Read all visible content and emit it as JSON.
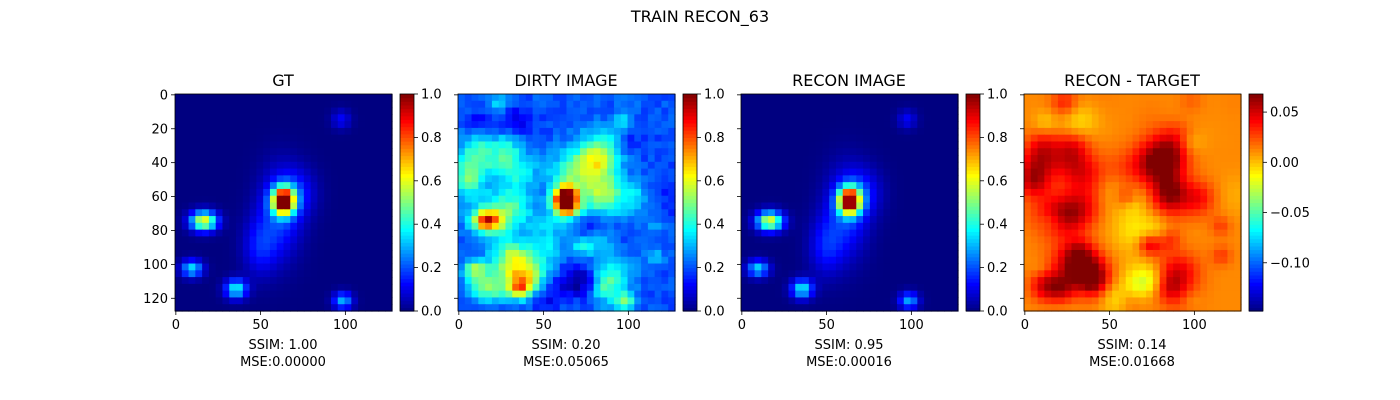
{
  "suptitle": "TRAIN RECON_63",
  "panels": [
    {
      "title": "GT",
      "ssim_text": "SSIM: 1.00",
      "mse_text": "MSE:0.00000",
      "kind": "gt",
      "cbar_ticks": [
        "0.0",
        "0.2",
        "0.4",
        "0.6",
        "0.8",
        "1.0"
      ],
      "cbar_range": [
        0.0,
        1.0
      ]
    },
    {
      "title": "DIRTY IMAGE",
      "ssim_text": "SSIM: 0.20",
      "mse_text": "MSE:0.05065",
      "kind": "dirty",
      "cbar_ticks": [
        "0.0",
        "0.2",
        "0.4",
        "0.6",
        "0.8",
        "1.0"
      ],
      "cbar_range": [
        0.0,
        1.0
      ]
    },
    {
      "title": "RECON IMAGE",
      "ssim_text": "SSIM: 0.95",
      "mse_text": "MSE:0.00016",
      "kind": "recon",
      "cbar_ticks": [
        "0.0",
        "0.2",
        "0.4",
        "0.6",
        "0.8",
        "1.0"
      ],
      "cbar_range": [
        0.0,
        1.0
      ]
    },
    {
      "title": "RECON - TARGET",
      "ssim_text": "SSIM: 0.14",
      "mse_text": "MSE:0.01668",
      "kind": "residual",
      "cbar_ticks": [
        "−0.10",
        "−0.05",
        "0.00",
        "0.05"
      ],
      "cbar_range": [
        -0.148,
        0.068
      ]
    }
  ],
  "x_ticks": [
    "0",
    "50",
    "100"
  ],
  "y_ticks": [
    "0",
    "20",
    "40",
    "60",
    "80",
    "100",
    "120"
  ],
  "chart_data": {
    "type": "heatmap",
    "title": "TRAIN RECON_63",
    "colormap": "jet",
    "image_size": [
      128,
      128
    ],
    "x_tick_values": [
      0,
      50,
      100
    ],
    "y_tick_values": [
      0,
      20,
      40,
      60,
      80,
      100,
      120
    ],
    "panels": [
      {
        "title": "GT",
        "ssim": 1.0,
        "mse": 0.0,
        "vmin": 0.0,
        "vmax": 1.0
      },
      {
        "title": "DIRTY IMAGE",
        "ssim": 0.2,
        "mse": 0.05065,
        "vmin": 0.0,
        "vmax": 1.0
      },
      {
        "title": "RECON IMAGE",
        "ssim": 0.95,
        "mse": 0.00016,
        "vmin": 0.0,
        "vmax": 1.0
      },
      {
        "title": "RECON - TARGET",
        "ssim": 0.14,
        "mse": 0.01668,
        "vmin": -0.148,
        "vmax": 0.068
      }
    ]
  }
}
